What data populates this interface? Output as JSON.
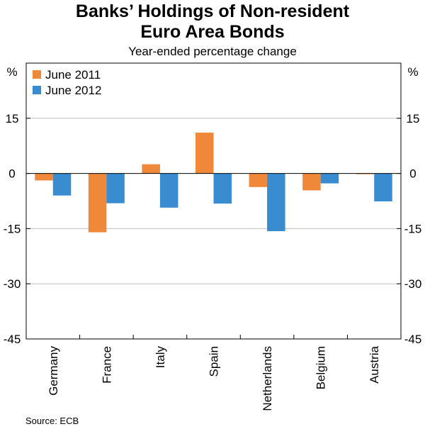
{
  "chart_data": {
    "type": "bar",
    "title_line1": "Banks’ Holdings of Non-resident",
    "title_line2": "Euro Area Bonds",
    "subtitle": "Year-ended percentage change",
    "ylabel_left": "%",
    "ylabel_right": "%",
    "ylim": [
      -45,
      30
    ],
    "yticks": [
      -45,
      -30,
      -15,
      0,
      15
    ],
    "categories": [
      "Germany",
      "France",
      "Italy",
      "Spain",
      "Netherlands",
      "Belgium",
      "Austria"
    ],
    "series": [
      {
        "name": "June 2011",
        "color": "#f0883a",
        "values": [
          -1.9,
          -16,
          2.5,
          11.1,
          -3.7,
          -4.6,
          -0.2
        ]
      },
      {
        "name": "June 2012",
        "color": "#3a8cd0",
        "values": [
          -6.0,
          -8.1,
          -9.3,
          -8.2,
          -15.7,
          -2.7,
          -7.6
        ]
      }
    ],
    "grid": "horizontal",
    "legend": "top-left",
    "source": "Source: ECB"
  }
}
